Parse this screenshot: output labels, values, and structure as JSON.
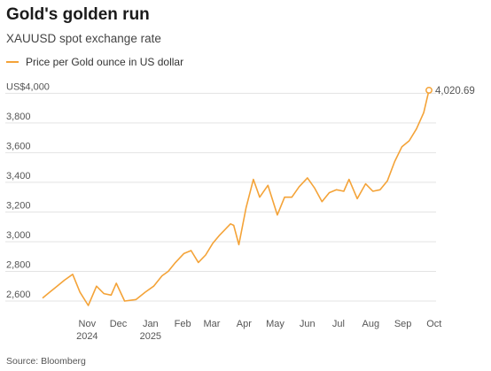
{
  "header": {
    "title": "Gold's golden run",
    "subtitle": "XAUUSD spot exchange rate"
  },
  "legend": {
    "label": "Price per Gold ounce in US dollar"
  },
  "source": "Source: Bloomberg",
  "colors": {
    "line": "#f4a338",
    "grid": "#e3e3e3"
  },
  "chart_data": {
    "type": "line",
    "title": "Gold's golden run",
    "subtitle": "XAUUSD spot exchange rate",
    "series": [
      {
        "name": "Price per Gold ounce in US dollar",
        "x": [
          "2024-10-01",
          "2024-10-08",
          "2024-10-15",
          "2024-10-22",
          "2024-10-30",
          "2024-11-06",
          "2024-11-14",
          "2024-11-22",
          "2024-11-29",
          "2024-12-06",
          "2024-12-11",
          "2024-12-19",
          "2024-12-30",
          "2025-01-08",
          "2025-01-16",
          "2025-01-24",
          "2025-01-30",
          "2025-02-06",
          "2025-02-14",
          "2025-02-21",
          "2025-02-28",
          "2025-03-07",
          "2025-03-14",
          "2025-03-20",
          "2025-03-31",
          "2025-04-03",
          "2025-04-08",
          "2025-04-15",
          "2025-04-22",
          "2025-04-28",
          "2025-05-06",
          "2025-05-15",
          "2025-05-22",
          "2025-05-29",
          "2025-06-05",
          "2025-06-13",
          "2025-06-20",
          "2025-06-27",
          "2025-07-04",
          "2025-07-11",
          "2025-07-18",
          "2025-07-23",
          "2025-07-31",
          "2025-08-08",
          "2025-08-15",
          "2025-08-22",
          "2025-08-29",
          "2025-09-05",
          "2025-09-12",
          "2025-09-19",
          "2025-09-26",
          "2025-10-03",
          "2025-10-08"
        ],
        "values": [
          2620,
          2660,
          2700,
          2740,
          2780,
          2660,
          2570,
          2700,
          2650,
          2640,
          2720,
          2600,
          2610,
          2660,
          2700,
          2770,
          2800,
          2860,
          2920,
          2940,
          2860,
          2910,
          2990,
          3040,
          3120,
          3110,
          2980,
          3230,
          3420,
          3300,
          3380,
          3180,
          3300,
          3300,
          3370,
          3430,
          3360,
          3270,
          3330,
          3350,
          3340,
          3420,
          3290,
          3390,
          3340,
          3350,
          3410,
          3540,
          3640,
          3680,
          3760,
          3870,
          4020.69
        ]
      }
    ],
    "y_labels": [
      "2,600",
      "2,800",
      "3,000",
      "3,200",
      "3,400",
      "3,600",
      "3,800",
      "US$4,000"
    ],
    "ylim": [
      2570,
      4050
    ],
    "x_ticks": [
      {
        "label": "Nov",
        "sub": "2024",
        "date": "2024-11-01"
      },
      {
        "label": "Dec",
        "sub": "",
        "date": "2024-12-01"
      },
      {
        "label": "Jan",
        "sub": "2025",
        "date": "2025-01-01"
      },
      {
        "label": "Feb",
        "sub": "",
        "date": "2025-02-01"
      },
      {
        "label": "Mar",
        "sub": "",
        "date": "2025-03-01"
      },
      {
        "label": "Apr",
        "sub": "",
        "date": "2025-04-01"
      },
      {
        "label": "May",
        "sub": "",
        "date": "2025-05-01"
      },
      {
        "label": "Jun",
        "sub": "",
        "date": "2025-06-01"
      },
      {
        "label": "Jul",
        "sub": "",
        "date": "2025-07-01"
      },
      {
        "label": "Aug",
        "sub": "",
        "date": "2025-08-01"
      },
      {
        "label": "Sep",
        "sub": "",
        "date": "2025-09-01"
      },
      {
        "label": "Oct",
        "sub": "",
        "date": "2025-10-01"
      }
    ],
    "xlim": [
      "2024-10-01",
      "2025-10-08"
    ],
    "end_label": "4,020.69",
    "grid": true,
    "legend_position": "top-left"
  }
}
